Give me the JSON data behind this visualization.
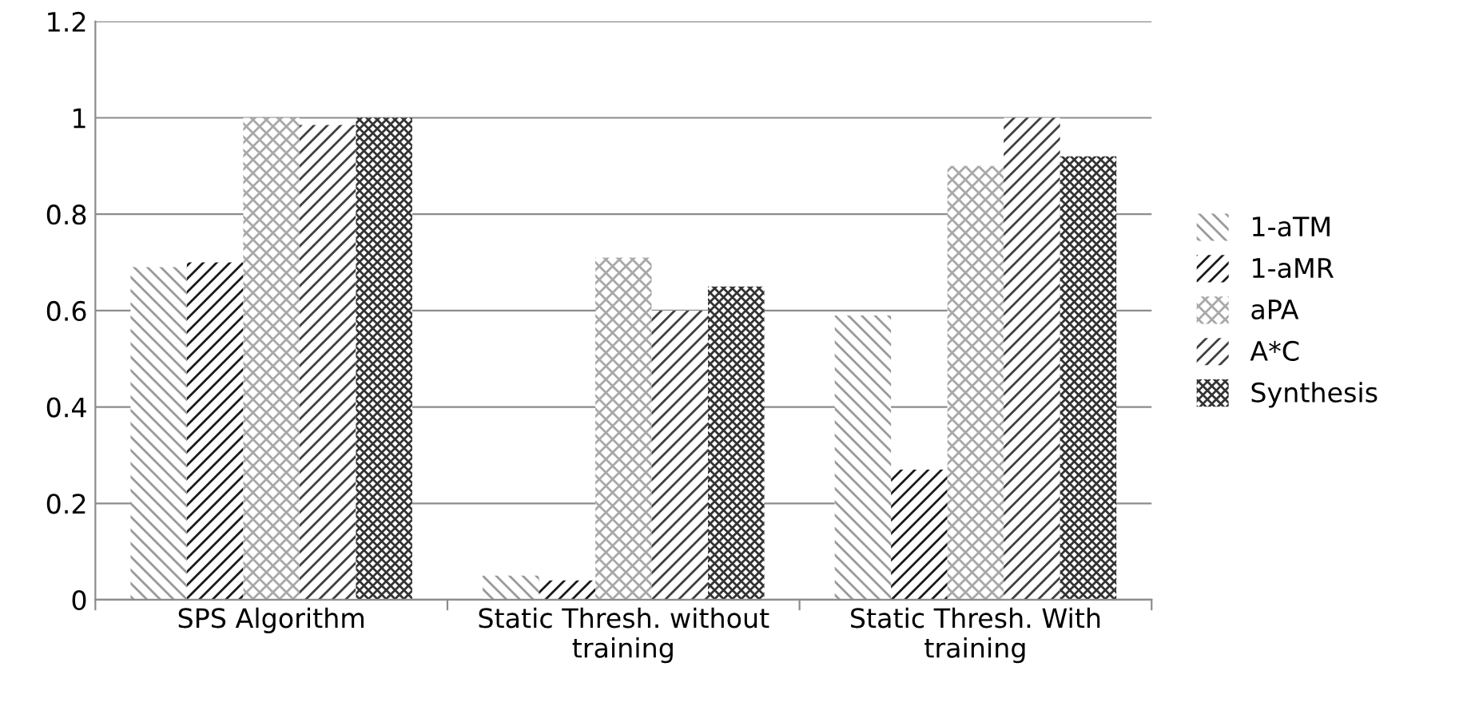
{
  "chart_data": {
    "type": "bar",
    "categories": [
      "SPS Algorithm",
      "Static Thresh. without training",
      "Static Thresh. With training"
    ],
    "series": [
      {
        "name": "1-aTM",
        "color": "#9a9a9a",
        "values": [
          0.69,
          0.05,
          0.59
        ]
      },
      {
        "name": "1-aMR",
        "color": "#1a1a1a",
        "values": [
          0.7,
          0.04,
          0.27
        ]
      },
      {
        "name": "aPA",
        "color": "#a8a8a8",
        "values": [
          1.0,
          0.71,
          0.9
        ]
      },
      {
        "name": "A*C",
        "color": "#404040",
        "values": [
          0.985,
          0.6,
          1.0
        ]
      },
      {
        "name": "Synthesis",
        "color": "#333333",
        "values": [
          1.0,
          0.65,
          0.92
        ]
      }
    ],
    "ylim": [
      0,
      1.2
    ],
    "yticks": [
      0,
      0.2,
      0.4,
      0.6,
      0.8,
      1,
      1.2
    ],
    "grid": "y",
    "legend": "right"
  }
}
